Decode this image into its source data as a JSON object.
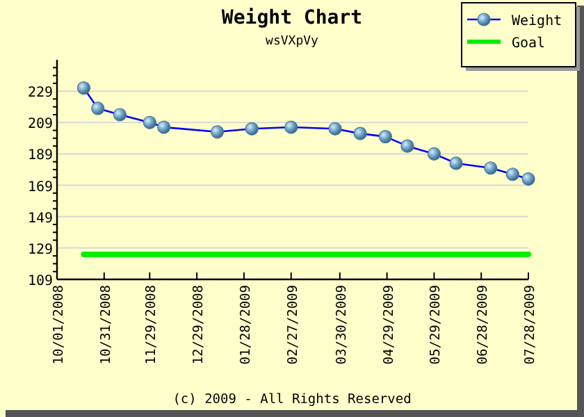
{
  "chart_data": {
    "type": "line",
    "title": "Weight Chart",
    "subtitle": "wsVXpVy",
    "xlim": [
      "2008-10-01",
      "2009-07-28"
    ],
    "xticks": [
      {
        "value": "2008-10-01",
        "label": "10/01/2008"
      },
      {
        "value": "2008-10-31",
        "label": "10/31/2008"
      },
      {
        "value": "2008-11-29",
        "label": "11/29/2008"
      },
      {
        "value": "2008-12-29",
        "label": "12/29/2008"
      },
      {
        "value": "2009-01-28",
        "label": "01/28/2009"
      },
      {
        "value": "2009-02-27",
        "label": "02/27/2009"
      },
      {
        "value": "2009-03-30",
        "label": "03/30/2009"
      },
      {
        "value": "2009-04-29",
        "label": "04/29/2009"
      },
      {
        "value": "2009-05-29",
        "label": "05/29/2009"
      },
      {
        "value": "2009-06-28",
        "label": "06/28/2009"
      },
      {
        "value": "2009-07-28",
        "label": "07/28/2009"
      }
    ],
    "ylim": [
      109,
      249
    ],
    "yticks": [
      109,
      {
        "value": 114,
        "label": null
      },
      {
        "value": 119,
        "label": null
      },
      {
        "value": 124,
        "label": null
      },
      129,
      {
        "value": 134,
        "label": null
      },
      {
        "value": 139,
        "label": null
      },
      {
        "value": 144,
        "label": null
      },
      149,
      {
        "value": 154,
        "label": null
      },
      {
        "value": 159,
        "label": null
      },
      {
        "value": 164,
        "label": null
      },
      169,
      {
        "value": 174,
        "label": null
      },
      {
        "value": 179,
        "label": null
      },
      {
        "value": 184,
        "label": null
      },
      189,
      {
        "value": 194,
        "label": null
      },
      {
        "value": 199,
        "label": null
      },
      {
        "value": 204,
        "label": null
      },
      209,
      {
        "value": 214,
        "label": null
      },
      {
        "value": 219,
        "label": null
      },
      {
        "value": 224,
        "label": null
      },
      229,
      {
        "value": 234,
        "label": null
      },
      {
        "value": 239,
        "label": null
      },
      {
        "value": 244,
        "label": null
      }
    ],
    "grid": "y",
    "legend": "top right",
    "series": [
      {
        "name": "Weight",
        "color": "#0000ff",
        "marker": "circle",
        "x": [
          "2008-10-18",
          "2008-10-27",
          "2008-11-10",
          "2008-11-29",
          "2008-12-08",
          "2009-01-11",
          "2009-02-02",
          "2009-02-27",
          "2009-03-27",
          "2009-04-12",
          "2009-04-28",
          "2009-05-12",
          "2009-05-29",
          "2009-06-12",
          "2009-07-04",
          "2009-07-18",
          "2009-07-28"
        ],
        "values": [
          231,
          218,
          214,
          209,
          206,
          203,
          205,
          206,
          205,
          202,
          200,
          194,
          189,
          183,
          180,
          176,
          173
        ]
      },
      {
        "name": "Goal",
        "color": "#00ee00",
        "marker": "none",
        "x": [
          "2008-10-18",
          "2009-07-28"
        ],
        "values": [
          125,
          125
        ]
      }
    ],
    "annotations": [
      "(c) 2009 - All Rights Reserved"
    ]
  }
}
